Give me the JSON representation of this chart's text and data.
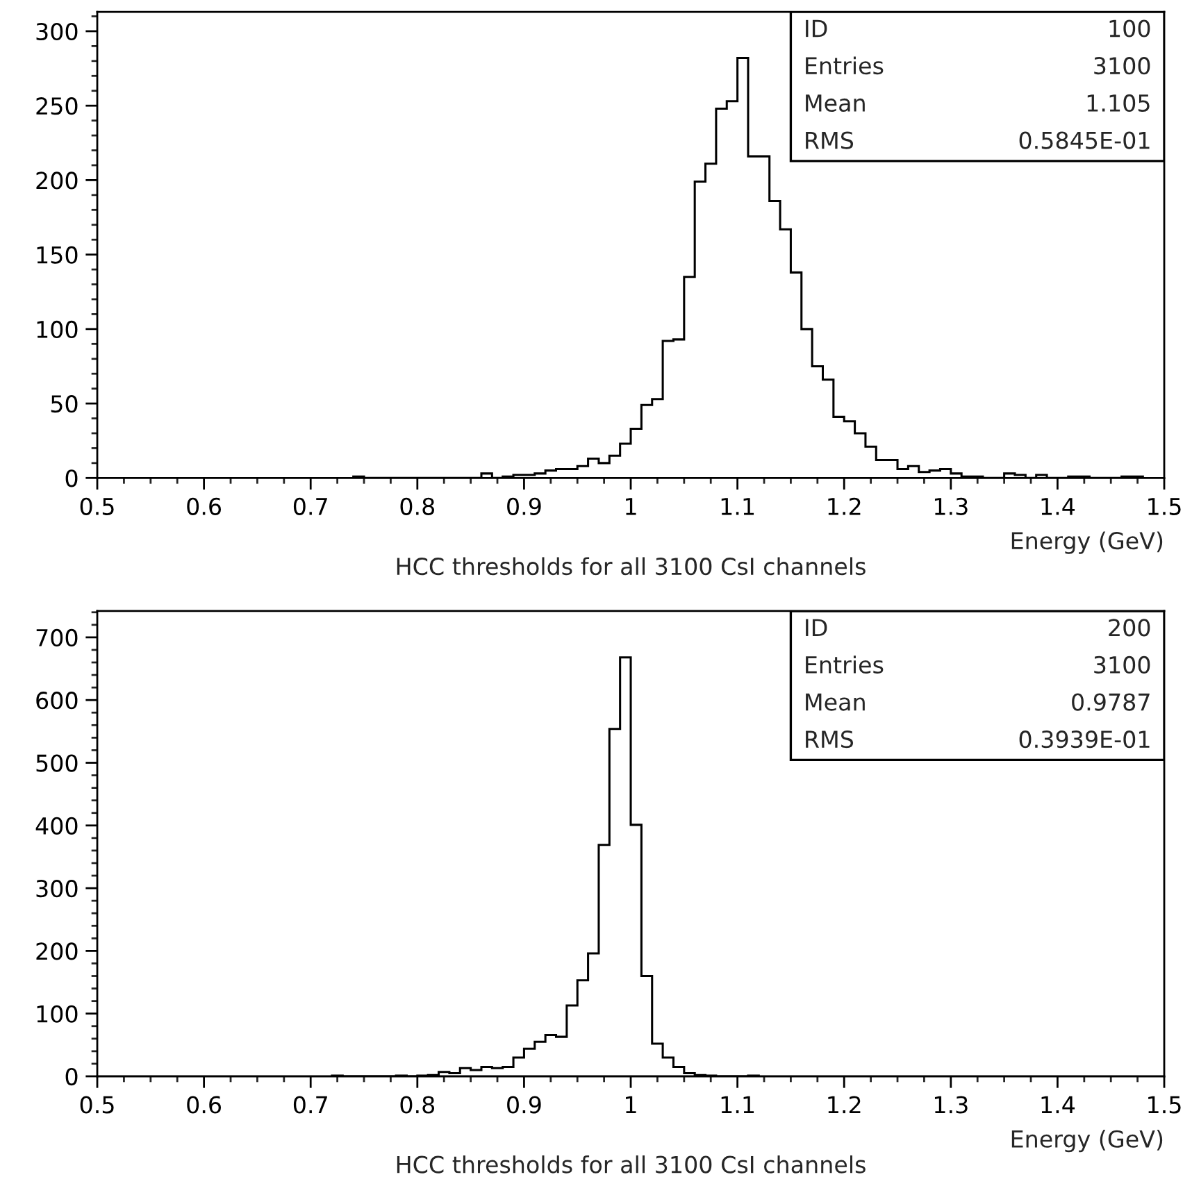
{
  "chart_data": [
    {
      "type": "histogram",
      "title": "HCC thresholds for all 3100 CsI channels",
      "xlabel": "Energy (GeV)",
      "color": "#000000",
      "bins": [
        0.74,
        0.75,
        0.76,
        0.77,
        0.78,
        0.79,
        0.8,
        0.81,
        0.82,
        0.83,
        0.84,
        0.85,
        0.86,
        0.87,
        0.88,
        0.89,
        0.9,
        0.91,
        0.92,
        0.93,
        0.94,
        0.95,
        0.96,
        0.97,
        0.98,
        0.99,
        1.0,
        1.01,
        1.02,
        1.03,
        1.04,
        1.05,
        1.06,
        1.07,
        1.08,
        1.09,
        1.1,
        1.11,
        1.12,
        1.13,
        1.14,
        1.15,
        1.16,
        1.17,
        1.18,
        1.19,
        1.2,
        1.21,
        1.22,
        1.23,
        1.24,
        1.25,
        1.26,
        1.27,
        1.28,
        1.29,
        1.3,
        1.31,
        1.32,
        1.33,
        1.34,
        1.35,
        1.36,
        1.37,
        1.38,
        1.39,
        1.4,
        1.41,
        1.42,
        1.43,
        1.44,
        1.45,
        1.46,
        1.47,
        1.48
      ],
      "values": [
        1,
        0,
        0,
        0,
        0,
        0,
        0,
        0,
        0,
        0,
        0,
        0,
        3,
        0,
        1,
        2,
        2,
        3,
        5,
        6,
        6,
        8,
        13,
        10,
        15,
        23,
        33,
        49,
        53,
        92,
        93,
        135,
        199,
        211,
        248,
        253,
        282,
        216,
        216,
        186,
        167,
        138,
        100,
        75,
        66,
        41,
        38,
        30,
        21,
        12,
        12,
        6,
        8,
        4,
        5,
        6,
        3,
        1,
        1,
        0,
        0,
        3,
        2,
        0,
        2,
        0,
        0,
        1,
        1,
        0,
        0,
        0,
        1,
        1
      ],
      "xlim": [
        0.5,
        1.5
      ],
      "ylim": [
        0,
        313
      ],
      "xticks": [
        0.5,
        0.6,
        0.7,
        0.8,
        0.9,
        1,
        1.1,
        1.2,
        1.3,
        1.4,
        1.5
      ],
      "yticks": [
        0,
        50,
        100,
        150,
        200,
        250,
        300
      ],
      "annotations": [
        "ID",
        "100",
        "Entries",
        "3100",
        "Mean",
        "1.105",
        "RMS",
        "0.5845E-01"
      ]
    },
    {
      "type": "histogram",
      "title": "HCC thresholds for all 3100 CsI channels",
      "xlabel": "Energy (GeV)",
      "color": "#000000",
      "bins": [
        0.72,
        0.73,
        0.74,
        0.75,
        0.76,
        0.77,
        0.78,
        0.79,
        0.8,
        0.81,
        0.82,
        0.83,
        0.84,
        0.85,
        0.86,
        0.87,
        0.88,
        0.89,
        0.9,
        0.91,
        0.92,
        0.93,
        0.94,
        0.95,
        0.96,
        0.97,
        0.98,
        0.99,
        1.0,
        1.01,
        1.02,
        1.03,
        1.04,
        1.05,
        1.06,
        1.07,
        1.08,
        1.09,
        1.1,
        1.11,
        1.12
      ],
      "values": [
        1,
        0,
        0,
        0,
        0,
        0,
        1,
        0,
        1,
        2,
        7,
        5,
        13,
        10,
        15,
        13,
        15,
        30,
        44,
        55,
        66,
        63,
        113,
        153,
        196,
        369,
        554,
        668,
        401,
        160,
        52,
        30,
        15,
        5,
        2,
        1,
        0,
        0,
        0,
        1
      ],
      "xlim": [
        0.5,
        1.5
      ],
      "ylim": [
        0,
        742
      ],
      "xticks": [
        0.5,
        0.6,
        0.7,
        0.8,
        0.9,
        1,
        1.1,
        1.2,
        1.3,
        1.4,
        1.5
      ],
      "yticks": [
        0,
        100,
        200,
        300,
        400,
        500,
        600,
        700
      ],
      "annotations": [
        "ID",
        "200",
        "Entries",
        "3100",
        "Mean",
        "0.9787",
        "RMS",
        "0.3939E-01"
      ]
    }
  ]
}
